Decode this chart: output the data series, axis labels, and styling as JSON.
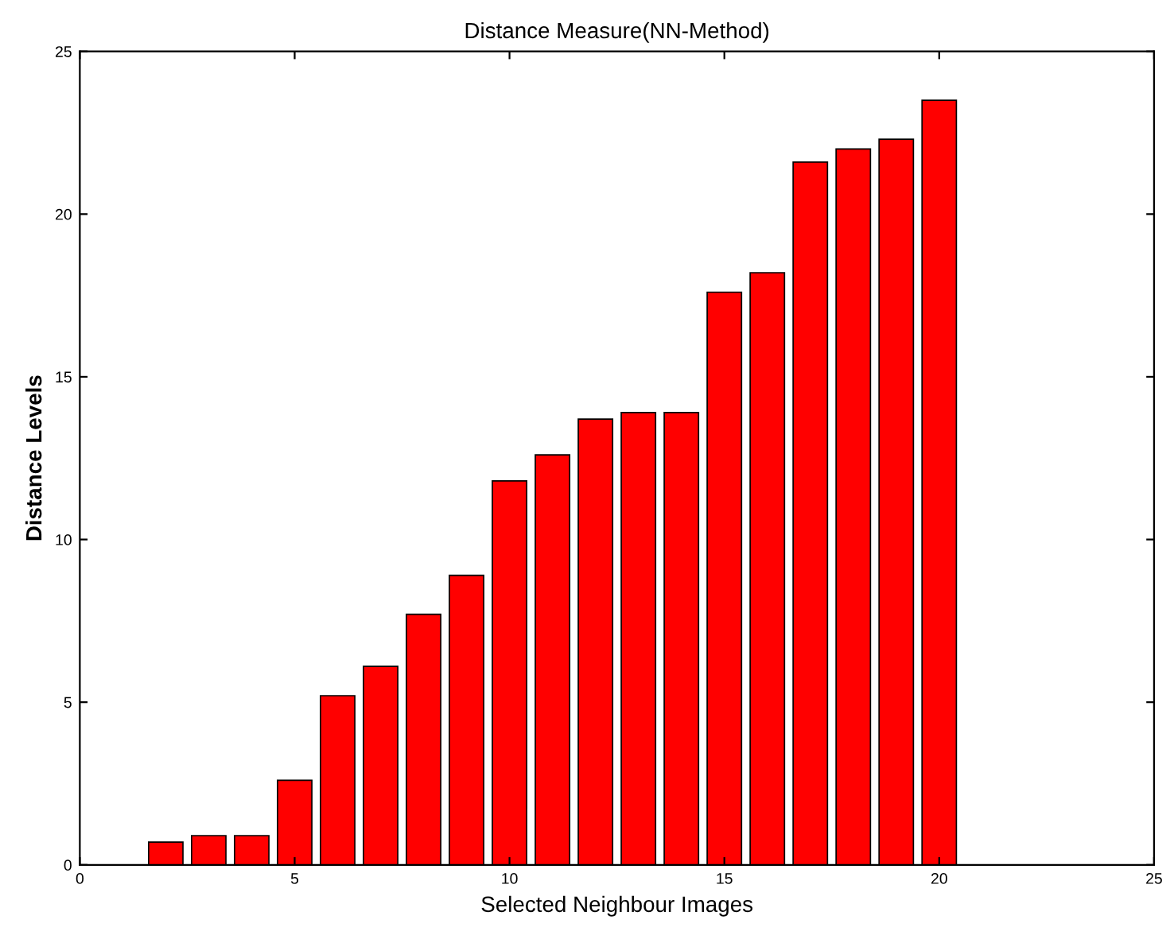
{
  "chart_data": {
    "type": "bar",
    "title": "Distance Measure(NN-Method)",
    "xlabel": "Selected Neighbour Images",
    "ylabel": "Distance Levels",
    "x": [
      2,
      3,
      4,
      5,
      6,
      7,
      8,
      9,
      10,
      11,
      12,
      13,
      14,
      15,
      16,
      17,
      18,
      19,
      20
    ],
    "values": [
      0.7,
      0.9,
      0.9,
      2.6,
      5.2,
      6.1,
      7.7,
      8.9,
      11.8,
      12.6,
      13.7,
      13.9,
      13.9,
      17.6,
      18.2,
      21.6,
      22.0,
      22.3,
      23.5
    ],
    "color": "#ff0000",
    "xlim": [
      0,
      25
    ],
    "xticks": [
      0,
      5,
      10,
      15,
      20,
      25
    ],
    "ylim": [
      0,
      25
    ],
    "yticks": [
      0,
      5,
      10,
      15,
      20,
      25
    ]
  }
}
